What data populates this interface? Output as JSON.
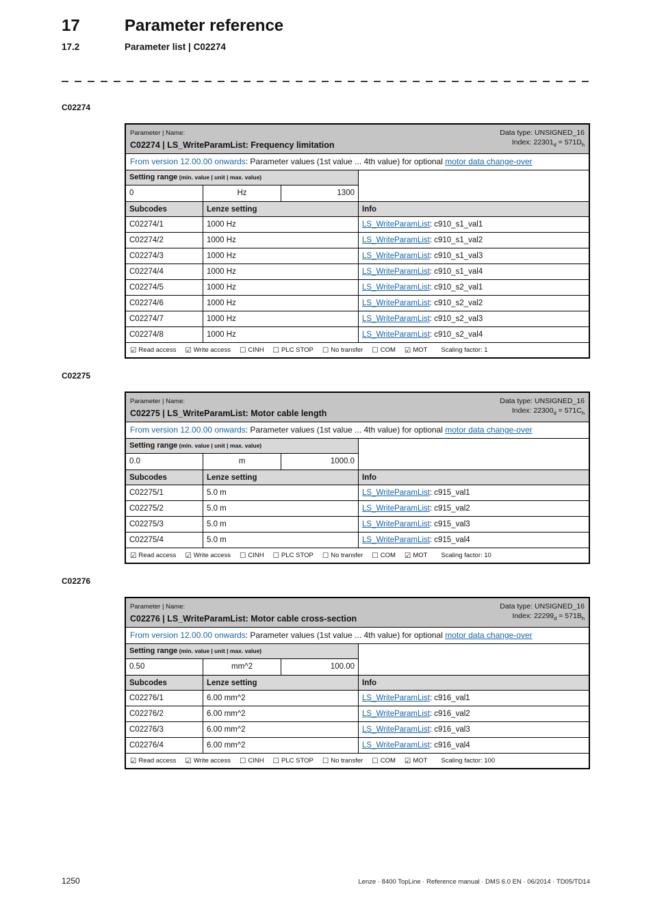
{
  "page": {
    "chapter_number": "17",
    "chapter_title": "Parameter reference",
    "section_number": "17.2",
    "section_title": "Parameter list | C02274",
    "page_number": "1250",
    "footer_text": "Lenze · 8400 TopLine · Reference manual · DMS 6.0 EN · 06/2014 · TD05/TD14"
  },
  "labels": {
    "parameter_name_caption": "Parameter | Name:",
    "data_type_prefix": "Data type: ",
    "index_prefix": "Index: ",
    "index_dec_suffix": "d",
    "index_equals": " = ",
    "index_hex_suffix": "h",
    "setting_range_title": "Setting range",
    "setting_range_hint": " (min. value | unit | max. value)",
    "subcodes_header": "Subcodes",
    "lenze_setting_header": "Lenze setting",
    "info_header": "Info",
    "scaling_factor_label": "Scaling factor:",
    "checkbox_checked_glyph": "☑",
    "checkbox_unchecked_glyph": "☐"
  },
  "colors": {
    "header_bar_gray": "#c5c5c5",
    "subheader_gray": "#d8d8d8",
    "link_blue": "#1565ac"
  },
  "parameters": [
    {
      "anchor": "C02274",
      "name": "C02274 | LS_WriteParamList: Frequency limitation",
      "data_type": "UNSIGNED_16",
      "index_dec": "22301",
      "index_hex": "571D",
      "version_note_lead": "From version 12.00.00 onwards",
      "version_note_mid": ": Parameter values (1st value ... 4th value) for optional ",
      "version_note_link": "motor data change-over",
      "range_min": "0",
      "range_unit": "Hz",
      "range_max": "1300",
      "subcodes": [
        {
          "code": "C02274/1",
          "setting": "1000 Hz",
          "link": "LS_WriteParamList",
          "info": ": c910_s1_val1"
        },
        {
          "code": "C02274/2",
          "setting": "1000 Hz",
          "link": "LS_WriteParamList",
          "info": ": c910_s1_val2"
        },
        {
          "code": "C02274/3",
          "setting": "1000 Hz",
          "link": "LS_WriteParamList",
          "info": ": c910_s1_val3"
        },
        {
          "code": "C02274/4",
          "setting": "1000 Hz",
          "link": "LS_WriteParamList",
          "info": ": c910_s1_val4"
        },
        {
          "code": "C02274/5",
          "setting": "1000 Hz",
          "link": "LS_WriteParamList",
          "info": ": c910_s2_val1"
        },
        {
          "code": "C02274/6",
          "setting": "1000 Hz",
          "link": "LS_WriteParamList",
          "info": ": c910_s2_val2"
        },
        {
          "code": "C02274/7",
          "setting": "1000 Hz",
          "link": "LS_WriteParamList",
          "info": ": c910_s2_val3"
        },
        {
          "code": "C02274/8",
          "setting": "1000 Hz",
          "link": "LS_WriteParamList",
          "info": ": c910_s2_val4"
        }
      ],
      "access_flags": [
        {
          "label": "Read access",
          "checked": true
        },
        {
          "label": "Write access",
          "checked": true
        },
        {
          "label": "CINH",
          "checked": false
        },
        {
          "label": "PLC STOP",
          "checked": false
        },
        {
          "label": "No transfer",
          "checked": false
        },
        {
          "label": "COM",
          "checked": false
        },
        {
          "label": "MOT",
          "checked": true
        }
      ],
      "scaling_factor": "1"
    },
    {
      "anchor": "C02275",
      "name": "C02275 | LS_WriteParamList: Motor cable length",
      "data_type": "UNSIGNED_16",
      "index_dec": "22300",
      "index_hex": "571C",
      "version_note_lead": "From version 12.00.00 onwards",
      "version_note_mid": ": Parameter values (1st value ... 4th value) for optional ",
      "version_note_link": "motor data change-over",
      "range_min": "0.0",
      "range_unit": "m",
      "range_max": "1000.0",
      "subcodes": [
        {
          "code": "C02275/1",
          "setting": "5.0 m",
          "link": "LS_WriteParamList",
          "info": ": c915_val1"
        },
        {
          "code": "C02275/2",
          "setting": "5.0 m",
          "link": "LS_WriteParamList",
          "info": ": c915_val2"
        },
        {
          "code": "C02275/3",
          "setting": "5.0 m",
          "link": "LS_WriteParamList",
          "info": ": c915_val3"
        },
        {
          "code": "C02275/4",
          "setting": "5.0 m",
          "link": "LS_WriteParamList",
          "info": ": c915_val4"
        }
      ],
      "access_flags": [
        {
          "label": "Read access",
          "checked": true
        },
        {
          "label": "Write access",
          "checked": true
        },
        {
          "label": "CINH",
          "checked": false
        },
        {
          "label": "PLC STOP",
          "checked": false
        },
        {
          "label": "No transfer",
          "checked": false
        },
        {
          "label": "COM",
          "checked": false
        },
        {
          "label": "MOT",
          "checked": true
        }
      ],
      "scaling_factor": "10"
    },
    {
      "anchor": "C02276",
      "name": "C02276 | LS_WriteParamList: Motor cable cross-section",
      "data_type": "UNSIGNED_16",
      "index_dec": "22299",
      "index_hex": "571B",
      "version_note_lead": "From version 12.00.00 onwards",
      "version_note_mid": ": Parameter values (1st value ... 4th value) for optional ",
      "version_note_link": "motor data change-over",
      "range_min": "0.50",
      "range_unit": "mm^2",
      "range_max": "100.00",
      "subcodes": [
        {
          "code": "C02276/1",
          "setting": "6.00 mm^2",
          "link": "LS_WriteParamList",
          "info": ": c916_val1"
        },
        {
          "code": "C02276/2",
          "setting": "6.00 mm^2",
          "link": "LS_WriteParamList",
          "info": ": c916_val2"
        },
        {
          "code": "C02276/3",
          "setting": "6.00 mm^2",
          "link": "LS_WriteParamList",
          "info": ": c916_val3"
        },
        {
          "code": "C02276/4",
          "setting": "6.00 mm^2",
          "link": "LS_WriteParamList",
          "info": ": c916_val4"
        }
      ],
      "access_flags": [
        {
          "label": "Read access",
          "checked": true
        },
        {
          "label": "Write access",
          "checked": true
        },
        {
          "label": "CINH",
          "checked": false
        },
        {
          "label": "PLC STOP",
          "checked": false
        },
        {
          "label": "No transfer",
          "checked": false
        },
        {
          "label": "COM",
          "checked": false
        },
        {
          "label": "MOT",
          "checked": true
        }
      ],
      "scaling_factor": "100"
    }
  ]
}
